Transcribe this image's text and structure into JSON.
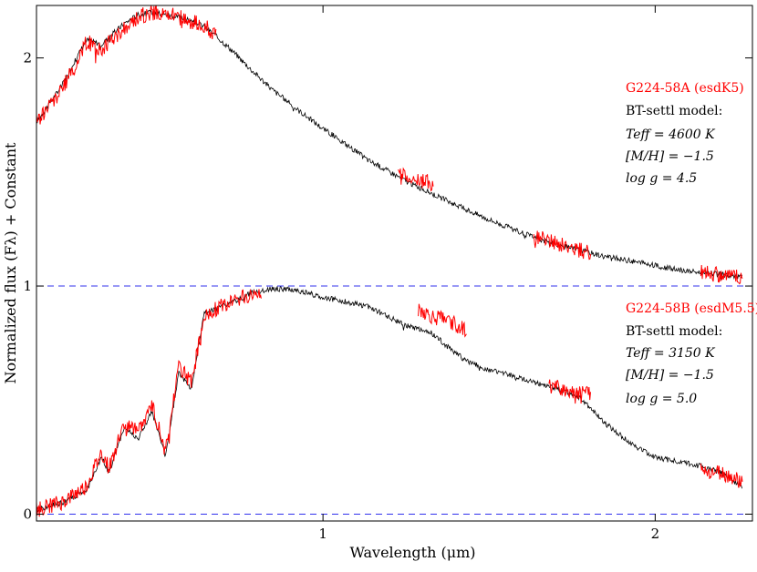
{
  "chart_data": {
    "type": "line",
    "xlabel": "Wavelength (μm)",
    "ylabel": "Normalized flux (Fλ) + Constant",
    "xscale": "log",
    "xlim": [
      0.55,
      2.45
    ],
    "ylim": [
      -0.03,
      2.23
    ],
    "xticks": [
      {
        "value": 1,
        "label": "1"
      },
      {
        "value": 2,
        "label": "2"
      }
    ],
    "yticks": [
      {
        "value": 0,
        "label": "0"
      },
      {
        "value": 1,
        "label": "1"
      },
      {
        "value": 2,
        "label": "2"
      }
    ],
    "grid": false,
    "reference_lines": [
      {
        "y": 1.0,
        "style": "dashed",
        "color": "#3030ee"
      },
      {
        "y": 0.0,
        "style": "dashed",
        "color": "#3030ee"
      }
    ],
    "series": [
      {
        "color": "#000000",
        "x": [
          0.55,
          0.58,
          0.61,
          0.63,
          0.66,
          0.68,
          0.7,
          0.74,
          0.78,
          0.82,
          0.86,
          0.9,
          0.95,
          1.0,
          1.05,
          1.1,
          1.2,
          1.3,
          1.4,
          1.5,
          1.6,
          1.7,
          1.8,
          1.9,
          2.0,
          2.1,
          2.2,
          2.3,
          2.4
        ],
        "y": [
          1.72,
          1.88,
          2.08,
          2.06,
          2.15,
          2.19,
          2.2,
          2.18,
          2.14,
          2.05,
          1.95,
          1.86,
          1.77,
          1.69,
          1.62,
          1.55,
          1.45,
          1.37,
          1.3,
          1.24,
          1.19,
          1.16,
          1.13,
          1.11,
          1.09,
          1.07,
          1.06,
          1.05,
          1.04
        ]
      },
      {
        "color": "#ff0000",
        "x": [
          0.55,
          0.58,
          0.61,
          0.63,
          0.66,
          0.68,
          0.7,
          0.74,
          0.78,
          0.8,
          1.17,
          1.2,
          1.23,
          1.26,
          1.55,
          1.6,
          1.65,
          1.7,
          1.75,
          2.2,
          2.3,
          2.4
        ],
        "y": [
          1.72,
          1.86,
          2.07,
          2.04,
          2.13,
          2.18,
          2.2,
          2.18,
          2.14,
          2.1,
          1.5,
          1.48,
          1.46,
          1.45,
          1.22,
          1.2,
          1.18,
          1.16,
          1.14,
          1.06,
          1.05,
          1.04
        ]
      },
      {
        "color": "#000000",
        "x": [
          0.55,
          0.58,
          0.61,
          0.63,
          0.64,
          0.66,
          0.68,
          0.7,
          0.72,
          0.74,
          0.76,
          0.78,
          0.8,
          0.83,
          0.86,
          0.9,
          0.95,
          1.0,
          1.05,
          1.1,
          1.15,
          1.2,
          1.25,
          1.3,
          1.35,
          1.4,
          1.5,
          1.6,
          1.7,
          1.8,
          1.9,
          2.0,
          2.1,
          2.2,
          2.3,
          2.4
        ],
        "y": [
          0.02,
          0.05,
          0.1,
          0.25,
          0.18,
          0.38,
          0.33,
          0.45,
          0.25,
          0.62,
          0.55,
          0.88,
          0.9,
          0.93,
          0.97,
          0.99,
          0.98,
          0.95,
          0.93,
          0.91,
          0.86,
          0.82,
          0.8,
          0.73,
          0.67,
          0.64,
          0.6,
          0.56,
          0.52,
          0.4,
          0.31,
          0.25,
          0.23,
          0.21,
          0.18,
          0.12
        ]
      },
      {
        "color": "#ff0000",
        "x": [
          0.55,
          0.58,
          0.61,
          0.63,
          0.64,
          0.66,
          0.68,
          0.7,
          0.72,
          0.74,
          0.76,
          0.78,
          0.8,
          0.83,
          0.86,
          0.88,
          1.22,
          1.26,
          1.3,
          1.35,
          1.6,
          1.65,
          1.7,
          1.75,
          2.2,
          2.3,
          2.4
        ],
        "y": [
          0.02,
          0.05,
          0.12,
          0.27,
          0.2,
          0.4,
          0.36,
          0.48,
          0.27,
          0.64,
          0.58,
          0.86,
          0.9,
          0.94,
          0.96,
          0.98,
          0.9,
          0.86,
          0.85,
          0.8,
          0.56,
          0.55,
          0.54,
          0.53,
          0.19,
          0.18,
          0.14
        ]
      }
    ],
    "annotations": {
      "a_name": "G224-58A (esdK5)",
      "a_model": "BT-settl model:",
      "a_teff": "Teff = 4600 K",
      "a_mh": "[M/H] = −1.5",
      "a_logg": "log g = 4.5",
      "b_name": "G224-58B (esdM5.5)",
      "b_model": "BT-settl model:",
      "b_teff": "Teff = 3150 K",
      "b_mh": "[M/H] = −1.5",
      "b_logg": "log g = 5.0"
    }
  }
}
